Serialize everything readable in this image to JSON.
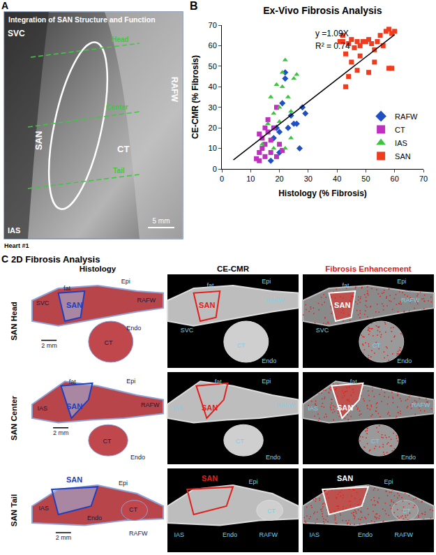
{
  "panel_a": {
    "letter": "A",
    "title": "Integration of SAN Structure and Function",
    "labels": {
      "svc": "SVC",
      "rafw": "RAFW",
      "san": "SAN",
      "ct": "CT",
      "ias": "IAS"
    },
    "levels": [
      "Head",
      "Center",
      "Tail"
    ],
    "scale": "5 mm",
    "caption": "Heart #1"
  },
  "chart_data": {
    "letter": "B",
    "type": "scatter",
    "title": "Ex-Vivo Fibrosis Analysis",
    "x_label": "Histology (% Fibrosis)",
    "y_label": "CE-CMR (% Fibrosis)",
    "xlim": [
      0,
      70
    ],
    "ylim": [
      0,
      70
    ],
    "xticks": [
      0,
      10,
      20,
      30,
      40,
      50,
      60,
      70
    ],
    "yticks": [
      0,
      10,
      20,
      30,
      40,
      50,
      60,
      70
    ],
    "grid": false,
    "legend": "lower right",
    "fit": {
      "equation": "y =1.09X",
      "r_squared": "R² = 0.74",
      "slope": 1.09,
      "x_range": [
        4,
        60
      ],
      "color": "#000000"
    },
    "series": [
      {
        "name": "RAFW",
        "color": "#1f4fc4",
        "marker": "diamond",
        "x": [
          17,
          18,
          19,
          20,
          21,
          22,
          22,
          23,
          24,
          25,
          26,
          27,
          28,
          29,
          20
        ],
        "y": [
          4,
          15,
          20,
          8,
          32,
          44,
          47,
          20,
          26,
          22,
          22,
          10,
          30,
          27,
          18
        ]
      },
      {
        "name": "CT",
        "color": "#c030c0",
        "marker": "square",
        "x": [
          12,
          13,
          13,
          14,
          14,
          15,
          15,
          16,
          16,
          17,
          17,
          18,
          19,
          19,
          20,
          13,
          15,
          21
        ],
        "y": [
          5,
          4,
          8,
          10,
          15,
          6,
          12,
          18,
          24,
          8,
          14,
          20,
          6,
          30,
          12,
          17,
          20,
          9
        ]
      },
      {
        "name": "IAS",
        "color": "#3cc43c",
        "marker": "triangle-up",
        "x": [
          14,
          16,
          17,
          18,
          19,
          20,
          20,
          21,
          21,
          22,
          22,
          23,
          24,
          25,
          26,
          18,
          24
        ],
        "y": [
          12,
          22,
          35,
          27,
          41,
          30,
          23,
          40,
          47,
          53,
          10,
          35,
          28,
          44,
          46,
          10,
          15
        ]
      },
      {
        "name": "SAN",
        "color": "#f03c1e",
        "marker": "square",
        "x": [
          41,
          42,
          43,
          44,
          45,
          45,
          46,
          47,
          48,
          48,
          49,
          50,
          51,
          51,
          52,
          53,
          53,
          54,
          55,
          56,
          57,
          58,
          58,
          59,
          59,
          60,
          43,
          44,
          47,
          42
        ],
        "y": [
          62,
          65,
          56,
          61,
          63,
          52,
          59,
          62,
          60,
          55,
          62,
          62,
          63,
          47,
          61,
          58,
          52,
          62,
          65,
          60,
          67,
          68,
          49,
          49,
          66,
          67,
          40,
          45,
          48,
          62
        ]
      }
    ]
  },
  "panel_c": {
    "letter": "C",
    "title": "2D Fibrosis Analysis",
    "columns": [
      "Histology",
      "CE-CMR",
      "Fibrosis Enhancement"
    ],
    "rows": [
      {
        "label": "SAN Head",
        "images": [
          [
            "Epi",
            "fat",
            "SVC",
            "SAN",
            "RAFW",
            "2 mm",
            "CT",
            "Endo"
          ],
          [
            "Epi",
            "fat",
            "SAN",
            "RAFW",
            "SVC",
            "CT",
            "Endo"
          ],
          [
            "Epi",
            "fat",
            "SAN",
            "RAFW",
            "SVC",
            "CT",
            "Endo"
          ]
        ]
      },
      {
        "label": "SAN Center",
        "images": [
          [
            "Epi",
            "fat",
            "IAS",
            "SAN",
            "RAFW",
            "2 mm",
            "CT",
            "Endo"
          ],
          [
            "Epi",
            "fat",
            "IAS",
            "SAN",
            "RAFW",
            "CT",
            "Endo"
          ],
          [
            "Epi",
            "fat",
            "IAS",
            "SAN",
            "RAFW",
            "CT",
            "Endo"
          ]
        ]
      },
      {
        "label": "SAN Tail",
        "images": [
          [
            "SAN",
            "Epi",
            "IAS",
            "2 mm",
            "Endo",
            "CT",
            "RAFW"
          ],
          [
            "SAN",
            "Epi",
            "IAS",
            "Endo",
            "CT",
            "RAFW"
          ],
          [
            "SAN",
            "Epi",
            "IAS",
            "Endo",
            "CT",
            "RAFW"
          ]
        ]
      }
    ]
  }
}
